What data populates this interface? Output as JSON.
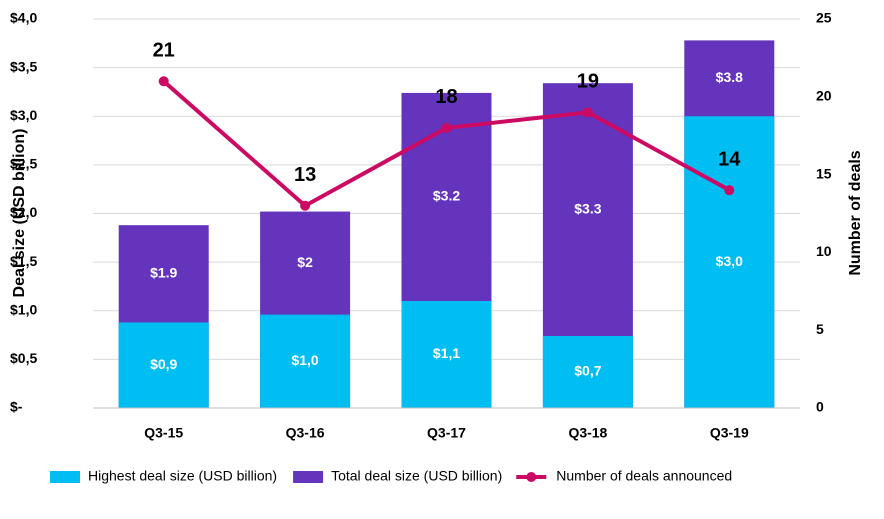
{
  "chart_data": {
    "type": "bar",
    "categories": [
      "Q3-15",
      "Q3-16",
      "Q3-17",
      "Q3-18",
      "Q3-19"
    ],
    "series": [
      {
        "name": "Highest deal size (USD billion)",
        "color": "#00bdf2",
        "values": [
          0.88,
          0.96,
          1.1,
          0.74,
          3.0
        ],
        "value_labels": [
          "$0,9",
          "$1,0",
          "$1,1",
          "$0,7",
          "$3,0"
        ]
      },
      {
        "name": "Total deal size (USD billion)",
        "color": "#6434bc",
        "values": [
          1.88,
          2.02,
          3.24,
          3.34,
          3.78
        ],
        "value_labels": [
          "$1.9",
          "$2",
          "$3.2",
          "$3.3",
          "$3.8"
        ]
      },
      {
        "name": "Number of deals announced",
        "type": "line",
        "axis": "y2",
        "color": "#cc0a63",
        "values": [
          21,
          13,
          18,
          19,
          14
        ]
      }
    ],
    "y_label": "Deal size (USD billion)",
    "y2_label": "Number of deals",
    "ylim": [
      0,
      4.0
    ],
    "yticks": [
      {
        "value": 0,
        "label": "$-"
      },
      {
        "value": 0.5,
        "label": "$0,5"
      },
      {
        "value": 1.0,
        "label": "$1,0"
      },
      {
        "value": 1.5,
        "label": "$1,5"
      },
      {
        "value": 2.0,
        "label": "$2,0"
      },
      {
        "value": 2.5,
        "label": "$2,5"
      },
      {
        "value": 3.0,
        "label": "$3,0"
      },
      {
        "value": 3.5,
        "label": "$3,5"
      },
      {
        "value": 4.0,
        "label": "$4,0"
      }
    ],
    "y2lim": [
      0,
      25
    ],
    "y2ticks": [
      0,
      5,
      10,
      15,
      20,
      25
    ],
    "grid": true,
    "legend": "bottom"
  }
}
